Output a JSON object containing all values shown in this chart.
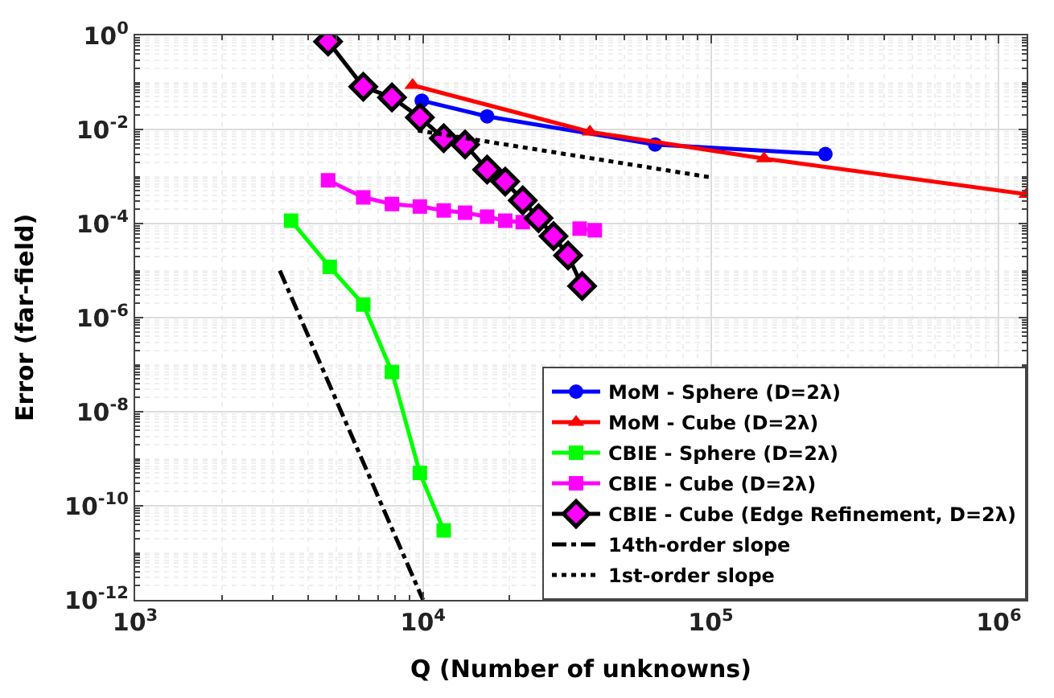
{
  "chart_data": {
    "type": "line",
    "xlabel": "Q (Number of unknowns)",
    "ylabel": "Error (far-field)",
    "log": "xy",
    "grid": true,
    "legend": "bottom right",
    "xlim": [
      1000,
      1250000
    ],
    "ylim": [
      1e-12,
      1
    ],
    "xticks": [
      {
        "value": 1000,
        "label": "10$^{3}$"
      },
      {
        "value": 10000,
        "label": "10$^{4}$"
      },
      {
        "value": 100000,
        "label": "10$^{5}$"
      },
      {
        "value": 1000000,
        "label": "10$^{6}$"
      }
    ],
    "yticks": [
      {
        "value": 1e-12,
        "label": "10$^{-12}$"
      },
      {
        "value": 1e-10,
        "label": "10$^{-10}$"
      },
      {
        "value": 1e-08,
        "label": "10$^{-8}$"
      },
      {
        "value": 1e-06,
        "label": "10$^{-6}$"
      },
      {
        "value": 0.0001,
        "label": "10$^{-4}$"
      },
      {
        "value": 0.01,
        "label": "10$^{-2}$"
      },
      {
        "value": 1,
        "label": "10$^{0}$"
      }
    ],
    "series": [
      {
        "name": "MoM - Sphere (D=2λ)",
        "color": "#0000ff",
        "marker": "circle",
        "line_style": "solid",
        "x": [
          9900,
          16700,
          64000,
          250000
        ],
        "values": [
          0.041,
          0.019,
          0.0048,
          0.003
        ]
      },
      {
        "name": "MoM - Cube (D=2λ)",
        "color": "#ff0000",
        "marker": "triangle",
        "line_style": "solid",
        "x": [
          9200,
          38000,
          153000,
          1250000
        ],
        "values": [
          0.087,
          0.0089,
          0.0024,
          0.00042
        ]
      },
      {
        "name": "CBIE - Sphere (D=2λ)",
        "color": "#00ff00",
        "marker": "square",
        "line_style": "solid",
        "x": [
          3480,
          4740,
          6200,
          7800,
          9750,
          11800
        ],
        "values": [
          0.000115,
          1.2e-05,
          1.9e-06,
          7e-08,
          5e-10,
          3e-11
        ]
      },
      {
        "name": "CBIE - Cube (D=2λ)",
        "color": "#ff00ff",
        "marker": "square",
        "line_style": "solid",
        "x": [
          4680,
          6200,
          7800,
          9750,
          11800,
          14000,
          16700,
          19300,
          22200,
          25200,
          28400,
          35000,
          39500
        ],
        "values": [
          0.00083,
          0.00036,
          0.00026,
          0.00023,
          0.00019,
          0.00017,
          0.00014,
          0.000115,
          0.000107,
          null,
          null,
          7.8e-05,
          7.2e-05
        ]
      },
      {
        "name": "CBIE - Cube (Edge Refinement, D=2λ)",
        "color": "#000000",
        "colors": [
          "#ff00ff",
          "#ff00ff",
          "#ff00ff",
          "#ff00ff",
          "#ff00ff",
          "#ff00ff",
          "#ff00ff",
          "#ff00ff",
          "#ff00ff",
          "#ff00ff",
          "#ff00ff",
          "#ff00ff",
          "#ff00ff"
        ],
        "marker": "diamond",
        "line_style": "solid",
        "x": [
          4680,
          6200,
          7800,
          9750,
          11800,
          14000,
          16700,
          19300,
          22200,
          25200,
          28400,
          31900,
          35700
        ],
        "values": [
          0.74,
          0.081,
          0.048,
          0.018,
          0.0065,
          0.0048,
          0.0014,
          0.00078,
          0.00031,
          0.00013,
          5.4e-05,
          2.1e-05,
          4.7e-06
        ]
      },
      {
        "name": "14th-order slope",
        "color": "#000000",
        "marker": "none",
        "line_style": "dashdot",
        "x": [
          3180,
          10000
        ],
        "values": [
          1e-05,
          1e-12
        ]
      },
      {
        "name": "1st-order slope",
        "color": "#000000",
        "marker": "none",
        "line_style": "dotted",
        "x": [
          9600,
          100000
        ],
        "values": [
          0.0095,
          0.00096
        ]
      }
    ]
  }
}
